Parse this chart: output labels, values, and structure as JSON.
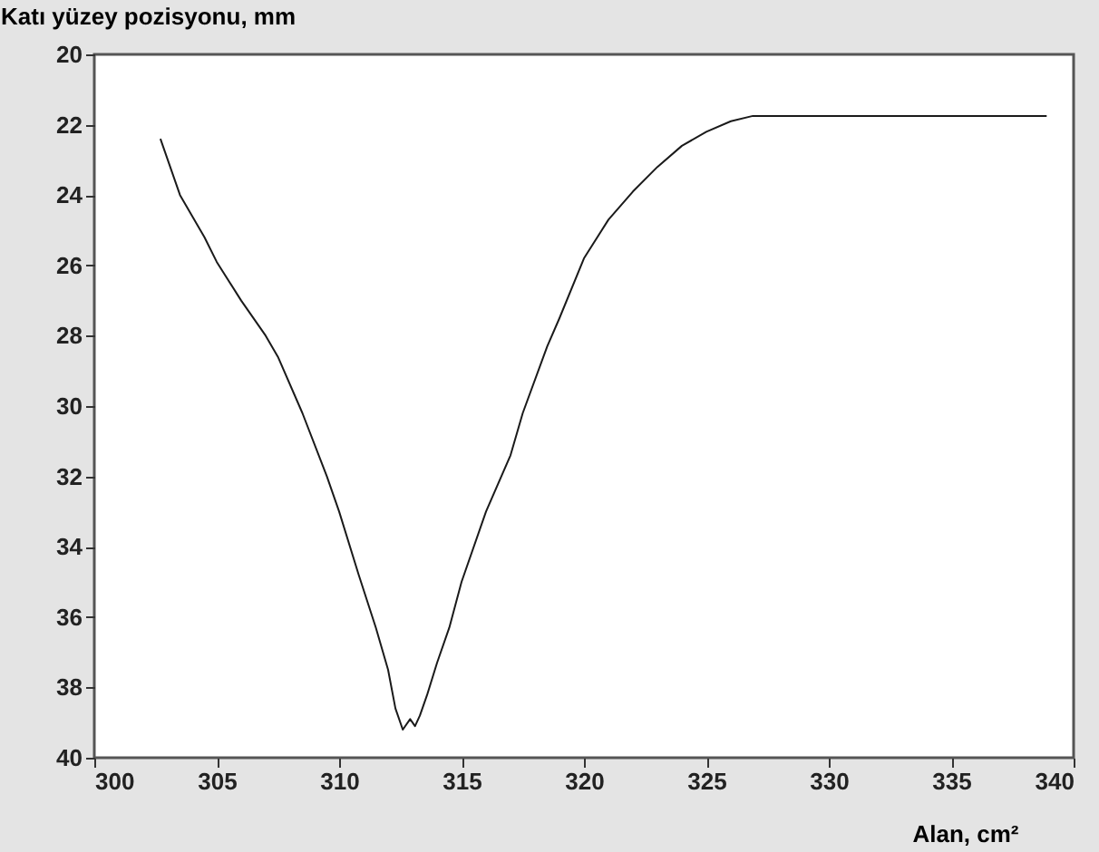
{
  "chart_data": {
    "type": "line",
    "ylabel": "Katı yüzey pozisyonu, mm",
    "xlabel": "Alan, cm²",
    "x": [
      302.7,
      303.5,
      304.5,
      305,
      306,
      307,
      307.5,
      308.5,
      309.5,
      310,
      310.8,
      311.5,
      312,
      312.3,
      312.6,
      312.9,
      313.1,
      313.3,
      313.6,
      314,
      314.5,
      315,
      316,
      317,
      317.5,
      318.5,
      319,
      320,
      321,
      322,
      323,
      324,
      325,
      326,
      326.9,
      330,
      335,
      338.9
    ],
    "series": [
      {
        "color": "#1a1a1a",
        "values": [
          22.4,
          24,
          25.2,
          25.9,
          27,
          28,
          28.6,
          30.2,
          32,
          33,
          34.8,
          36.3,
          37.5,
          38.6,
          39.2,
          38.9,
          39.1,
          38.8,
          38.2,
          37.3,
          36.3,
          35,
          33,
          31.4,
          30.2,
          28.3,
          27.5,
          25.8,
          24.7,
          23.9,
          23.2,
          22.6,
          22.2,
          21.9,
          21.75,
          21.75,
          21.75,
          21.75
        ]
      }
    ],
    "xlim": [
      300,
      340
    ],
    "xticks": [
      300,
      305,
      310,
      315,
      320,
      325,
      330,
      335,
      340
    ],
    "ylim": [
      40,
      20
    ],
    "yticks": [
      20,
      22,
      24,
      26,
      28,
      30,
      32,
      34,
      36,
      38,
      40
    ],
    "grid": false,
    "legend": false,
    "marker": "none",
    "line_style": "solid"
  }
}
